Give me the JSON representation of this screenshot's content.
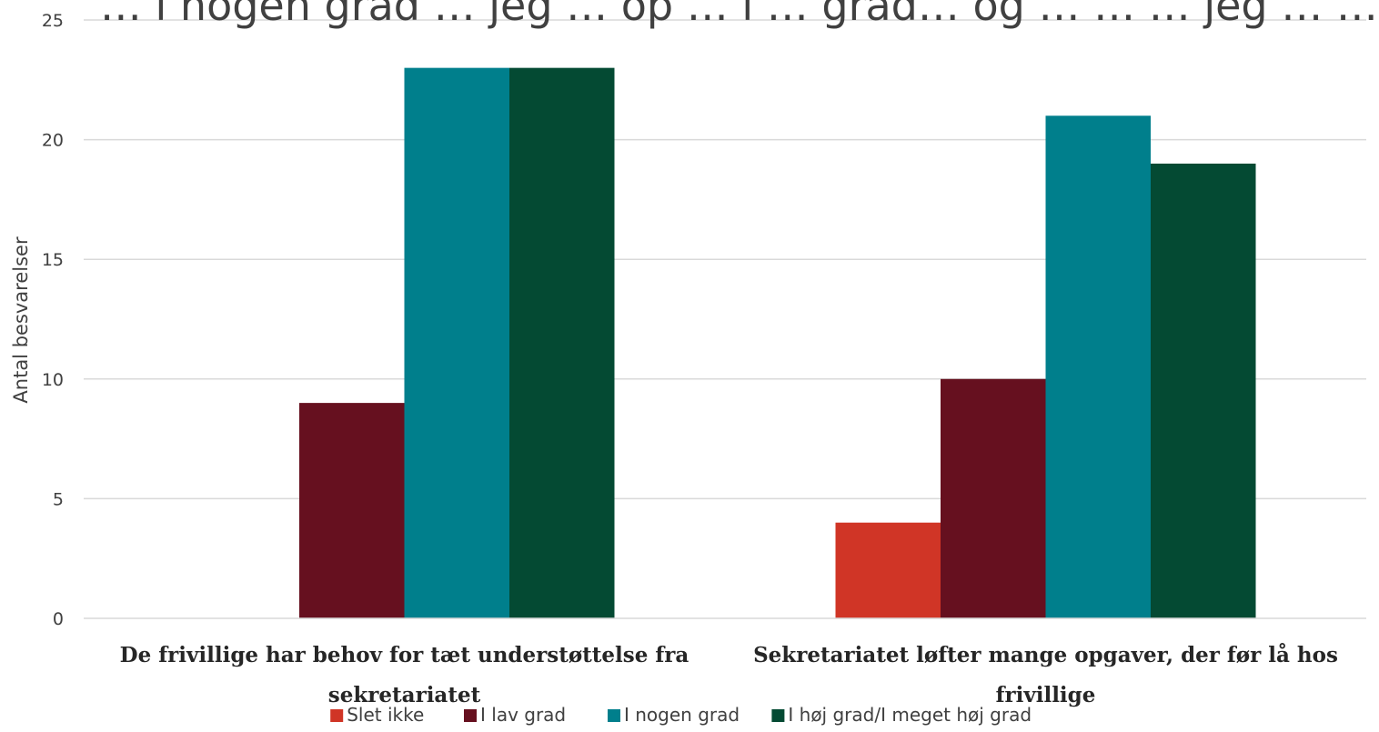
{
  "chart_data": {
    "type": "bar",
    "title": "… i nogen grad … jeg … op … i … grad… og … … … jeg … … … igt",
    "ylabel": "Antal besvarelser",
    "xlabel": "",
    "ylim": [
      0,
      25
    ],
    "yticks": [
      0,
      5,
      10,
      15,
      20,
      25
    ],
    "grid": true,
    "legend_position": "bottom",
    "categories": [
      [
        "De frivillige har behov for tæt understøttelse fra",
        "sekretariatet"
      ],
      [
        "Sekretariatet løfter mange opgaver, der før lå hos",
        "frivillige"
      ]
    ],
    "series": [
      {
        "name": "Slet ikke",
        "color": "#d03526",
        "values": [
          0,
          4
        ]
      },
      {
        "name": "I lav grad",
        "color": "#66101f",
        "values": [
          9,
          10
        ]
      },
      {
        "name": "I nogen grad",
        "color": "#007f8c",
        "values": [
          23,
          21
        ]
      },
      {
        "name": "I høj grad/I meget høj grad",
        "color": "#044a33",
        "values": [
          23,
          19
        ]
      }
    ]
  }
}
